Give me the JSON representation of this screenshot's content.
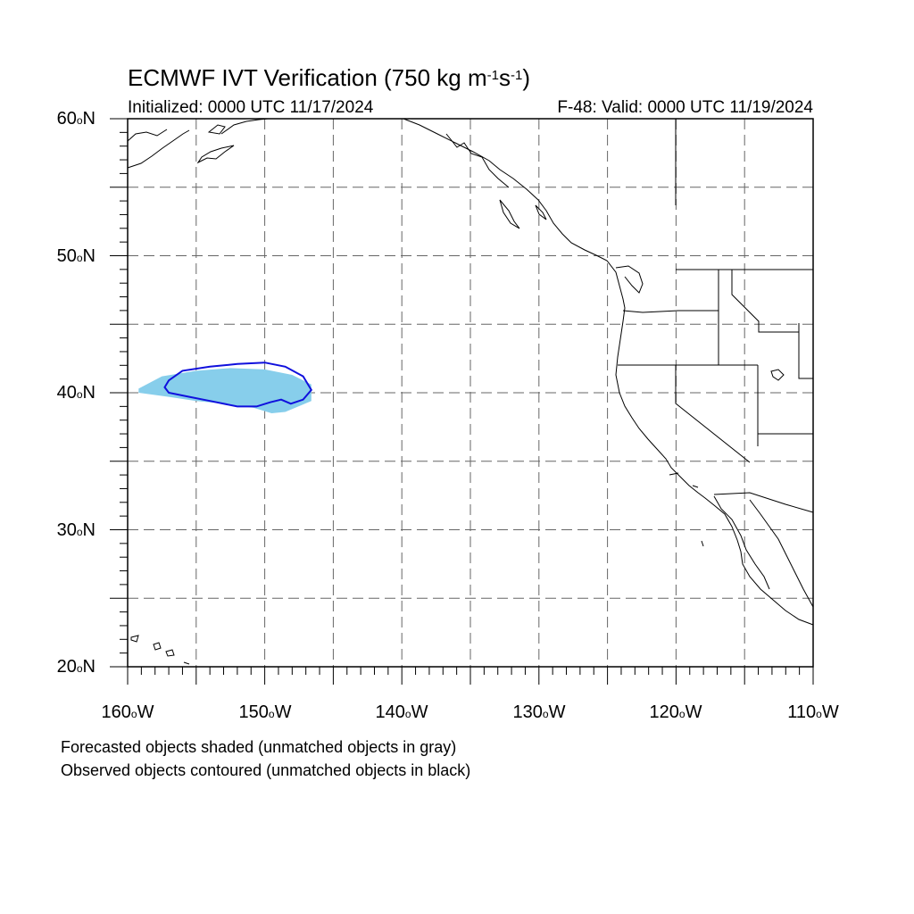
{
  "title": {
    "main": "ECMWF IVT Verification (750 kg m",
    "exp1": "-1",
    "mid": "s",
    "exp2": "-1",
    "close": ")"
  },
  "init_label": "Initialized: 0000 UTC 11/17/2024",
  "valid_label": "F-48: Valid: 0000 UTC 11/19/2024",
  "y_ticks": [
    {
      "num": "60",
      "hemi": "N"
    },
    {
      "num": "50",
      "hemi": "N"
    },
    {
      "num": "40",
      "hemi": "N"
    },
    {
      "num": "30",
      "hemi": "N"
    },
    {
      "num": "20",
      "hemi": "N"
    }
  ],
  "x_ticks": [
    {
      "num": "160",
      "hemi": "W"
    },
    {
      "num": "150",
      "hemi": "W"
    },
    {
      "num": "140",
      "hemi": "W"
    },
    {
      "num": "130",
      "hemi": "W"
    },
    {
      "num": "120",
      "hemi": "W"
    },
    {
      "num": "110",
      "hemi": "W"
    }
  ],
  "legend": {
    "line1": "Forecasted objects shaded (unmatched objects in gray)",
    "line2": "Observed objects contoured (unmatched objects in black)"
  },
  "map": {
    "lon_range": [
      -160,
      -110
    ],
    "lat_range": [
      20,
      60
    ],
    "grid_lon_step": 5,
    "grid_lat_step": 5,
    "colors": {
      "forecast_fill": "#87ceeb",
      "observed_contour": "#1010dd",
      "coastline": "#000000",
      "grid": "#666666"
    },
    "forecast_object": [
      [
        -159.2,
        40.3
      ],
      [
        -157.5,
        41.2
      ],
      [
        -155.0,
        41.6
      ],
      [
        -152.5,
        41.8
      ],
      [
        -150.0,
        41.7
      ],
      [
        -148.0,
        41.3
      ],
      [
        -146.6,
        40.6
      ],
      [
        -146.6,
        39.4
      ],
      [
        -147.3,
        39.1
      ],
      [
        -148.5,
        38.6
      ],
      [
        -149.5,
        38.5
      ],
      [
        -150.8,
        38.9
      ],
      [
        -153.0,
        39.2
      ],
      [
        -155.0,
        39.4
      ],
      [
        -157.0,
        39.7
      ],
      [
        -159.2,
        40.0
      ]
    ],
    "observed_object": [
      [
        -157.3,
        40.4
      ],
      [
        -157.0,
        40.9
      ],
      [
        -156.0,
        41.6
      ],
      [
        -154.0,
        41.9
      ],
      [
        -152.0,
        42.1
      ],
      [
        -150.0,
        42.2
      ],
      [
        -148.5,
        41.9
      ],
      [
        -147.2,
        41.2
      ],
      [
        -146.6,
        40.2
      ],
      [
        -147.2,
        39.5
      ],
      [
        -148.1,
        39.2
      ],
      [
        -148.8,
        39.5
      ],
      [
        -149.6,
        39.3
      ],
      [
        -150.6,
        39.0
      ],
      [
        -152.0,
        39.0
      ],
      [
        -154.0,
        39.4
      ],
      [
        -155.5,
        39.7
      ],
      [
        -157.0,
        40.0
      ]
    ]
  }
}
